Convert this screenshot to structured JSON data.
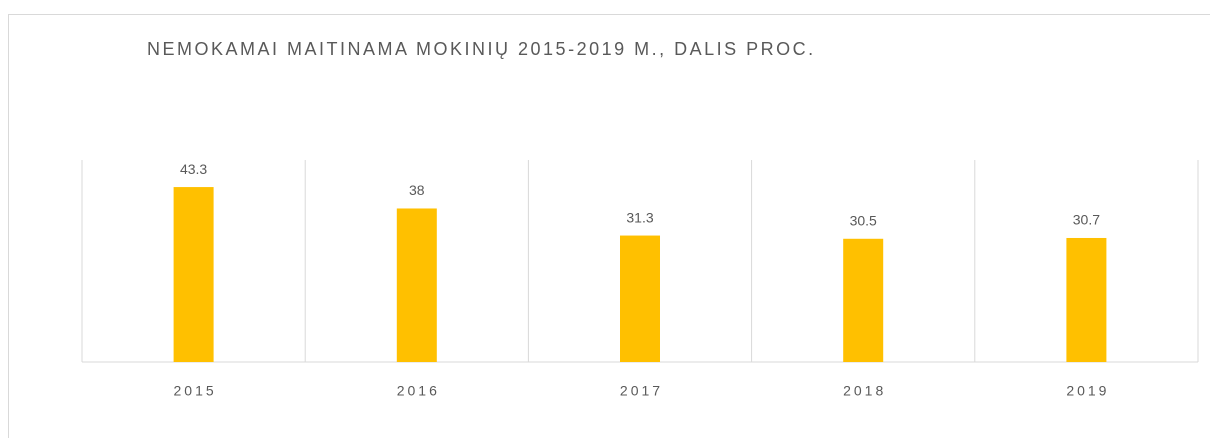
{
  "chart_data": {
    "type": "bar",
    "title": "NEMOKAMAI MAITINAMA MOKINIŲ 2015-2019 M., DALIS PROC.",
    "categories": [
      "2015",
      "2016",
      "2017",
      "2018",
      "2019"
    ],
    "values": [
      43.3,
      38,
      31.3,
      30.5,
      30.7
    ],
    "color": "#ffc000",
    "ylim": [
      0,
      50
    ]
  }
}
